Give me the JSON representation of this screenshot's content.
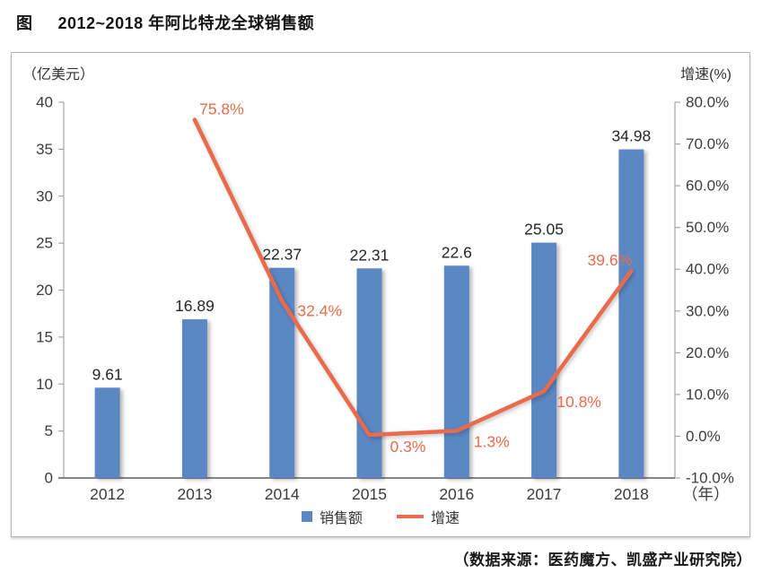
{
  "title": {
    "prefix": "图",
    "text": "2012~2018 年阿比特龙全球销售额"
  },
  "source": "（数据来源：医药魔方、凯盛产业研究院）",
  "colors": {
    "bar": "#5b87c5",
    "line": "#e96b4b",
    "axis": "#a6a6a6",
    "baseline": "#5f5f5f",
    "tick_text": "#3c3c3c",
    "bar_label": "#262626"
  },
  "chart_data": {
    "type": "combo",
    "categories": [
      "2012",
      "2013",
      "2014",
      "2015",
      "2016",
      "2017",
      "2018"
    ],
    "series": [
      {
        "name": "销售额",
        "type": "bar",
        "axis": "left",
        "color": "#5b87c5",
        "values": [
          9.61,
          16.89,
          22.37,
          22.31,
          22.6,
          25.05,
          34.98
        ],
        "labels": [
          "9.61",
          "16.89",
          "22.37",
          "22.31",
          "22.6",
          "25.05",
          "34.98"
        ]
      },
      {
        "name": "增速",
        "type": "line",
        "axis": "right",
        "color": "#e96b4b",
        "values": [
          null,
          75.8,
          32.4,
          0.3,
          1.3,
          10.8,
          39.6
        ],
        "labels": [
          "",
          "75.8%",
          "32.4%",
          "0.3%",
          "1.3%",
          "10.8%",
          "39.6%"
        ]
      }
    ],
    "left_axis": {
      "label": "（亿美元）",
      "min": 0,
      "max": 40,
      "step": 5,
      "ticks": [
        "0",
        "5",
        "10",
        "15",
        "20",
        "25",
        "30",
        "35",
        "40"
      ]
    },
    "right_axis": {
      "label": "增速(%)",
      "min": -10,
      "max": 80,
      "step": 10,
      "ticks": [
        "-10.0%",
        "0.0%",
        "10.0%",
        "20.0%",
        "30.0%",
        "40.0%",
        "50.0%",
        "60.0%",
        "70.0%",
        "80.0%"
      ]
    },
    "x_axis": {
      "suffix": "（年）"
    },
    "legend": [
      {
        "label": "销售额",
        "swatch": "square",
        "color": "#5b87c5"
      },
      {
        "label": "增速",
        "swatch": "line",
        "color": "#e96b4b"
      }
    ],
    "grid": false,
    "legend_position": "bottom"
  }
}
